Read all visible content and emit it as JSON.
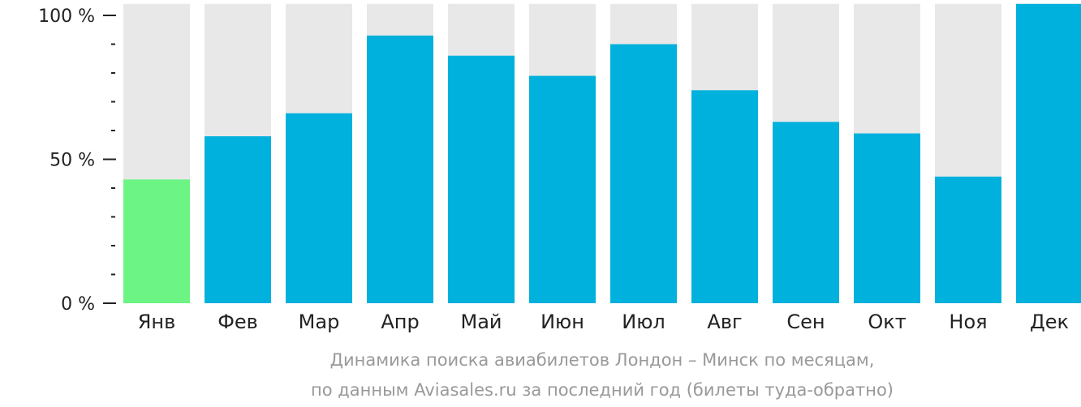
{
  "chart_data": {
    "type": "bar",
    "categories": [
      "Янв",
      "Фев",
      "Мар",
      "Апр",
      "Май",
      "Июн",
      "Июл",
      "Авг",
      "Сен",
      "Окт",
      "Ноя",
      "Дек"
    ],
    "values": [
      43,
      58,
      66,
      93,
      86,
      79,
      90,
      74,
      63,
      59,
      44,
      104
    ],
    "ylim": [
      0,
      104
    ],
    "yticks": [
      {
        "value": 100,
        "label": "100 %"
      },
      {
        "value": 50,
        "label": "50 %"
      },
      {
        "value": 0,
        "label": "0 %"
      }
    ],
    "minor_tick_step": 10,
    "grid": false,
    "colors": {
      "bar": "#00b1dd",
      "highlight": "#6cf584",
      "background_bar": "#e8e8e8",
      "axis": "#222222"
    },
    "highlight_index": 0,
    "caption": [
      "Динамика поиска авиабилетов Лондон – Минск по месяцам,",
      "по данным Aviasales.ru за последний год (билеты туда-обратно)"
    ]
  }
}
